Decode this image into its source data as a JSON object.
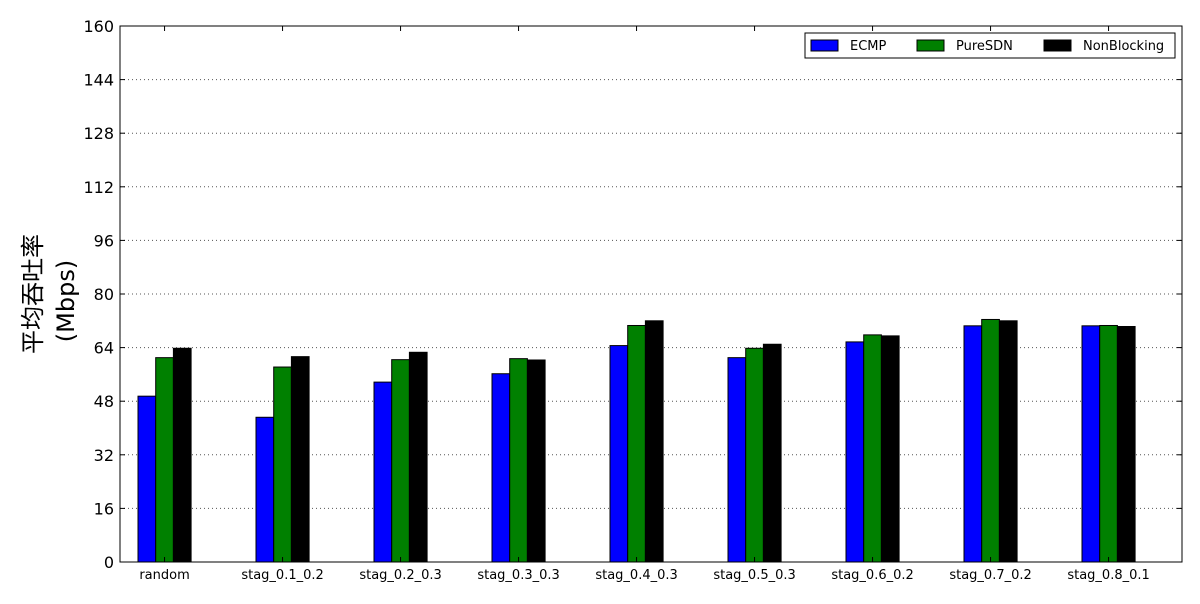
{
  "chart_data": {
    "type": "bar",
    "categories": [
      "random",
      "stag_0.1_0.2",
      "stag_0.2_0.3",
      "stag_0.3_0.3",
      "stag_0.4_0.3",
      "stag_0.5_0.3",
      "stag_0.6_0.2",
      "stag_0.7_0.2",
      "stag_0.8_0.1"
    ],
    "series": [
      {
        "name": "ECMP",
        "color": "#0000ff",
        "values": [
          49.5,
          43.2,
          53.7,
          56.2,
          64.6,
          61.0,
          65.7,
          70.5,
          70.5
        ]
      },
      {
        "name": "PureSDN",
        "color": "#008000",
        "values": [
          61.0,
          58.2,
          60.4,
          60.7,
          70.6,
          63.8,
          67.8,
          72.4,
          70.6
        ]
      },
      {
        "name": "NonBlocking",
        "color": "#000000",
        "values": [
          63.8,
          61.3,
          62.6,
          60.3,
          72.0,
          65.0,
          67.5,
          72.0,
          70.3
        ]
      }
    ],
    "title": "",
    "xlabel": "",
    "ylabel": "平均吞吐率",
    "ylabel_unit": "(Mbps)",
    "ylim": [
      0,
      160
    ],
    "yticks": [
      0,
      16,
      32,
      48,
      64,
      80,
      96,
      112,
      128,
      144,
      160
    ],
    "grid": "y-dotted",
    "legend_position": "top-right"
  }
}
